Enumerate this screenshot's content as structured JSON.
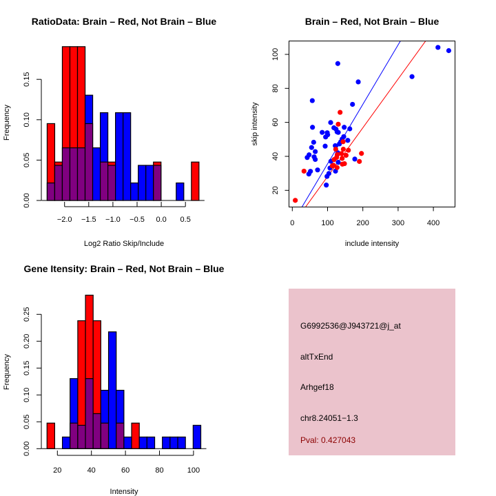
{
  "colors": {
    "brain": "#ff0000",
    "not_brain": "#0000ff",
    "overlap": "#800080",
    "info_box": "#ebc3cc",
    "pval_text": "#8b0000"
  },
  "chart_data": [
    {
      "id": "ratio-histogram",
      "type": "bar",
      "subtype": "overlaid-histogram",
      "title": "RatioData: Brain – Red, Not Brain – Blue",
      "xlabel": "Log2 Ratio Skip/Include",
      "ylabel": "Frequency",
      "xlim": [
        -2.45,
        0.85
      ],
      "ylim": [
        0,
        0.15
      ],
      "xticks": [
        -2.0,
        -1.5,
        -1.0,
        -0.5,
        0.0,
        0.5
      ],
      "xtick_labels": [
        "−2.0",
        "−1.5",
        "−1.0",
        "−0.5",
        "0.0",
        "0.5"
      ],
      "yticks": [
        0.0,
        0.05,
        0.1,
        0.15
      ],
      "ytick_labels": [
        "0.00",
        "0.05",
        "0.10",
        "0.15"
      ],
      "bin_start": -2.36,
      "bin_width": 0.157,
      "series": [
        {
          "name": "Brain",
          "color": "red",
          "values": [
            0.0952,
            0.0476,
            0.1905,
            0.1905,
            0.1905,
            0.0952,
            0,
            0.0476,
            0.0476,
            0,
            0,
            0,
            0,
            0,
            0.0476,
            0,
            0,
            0,
            0,
            0.0476
          ]
        },
        {
          "name": "Not Brain",
          "color": "blue",
          "values": [
            0.0217,
            0.0435,
            0.0652,
            0.0652,
            0.0652,
            0.1304,
            0.0652,
            0.1087,
            0.0435,
            0.1087,
            0.1087,
            0.0217,
            0.0435,
            0.0435,
            0.0435,
            0,
            0,
            0.0217,
            0,
            0
          ]
        }
      ],
      "legend": "none (colors described in title)"
    },
    {
      "id": "intensity-scatter",
      "type": "scatter",
      "title": "Brain – Red, Not Brain – Blue",
      "xlabel": "include intensity",
      "ylabel": "skip intensity",
      "xlim": [
        -10,
        460
      ],
      "ylim": [
        10,
        107
      ],
      "xticks": [
        0,
        100,
        200,
        300,
        400
      ],
      "xtick_labels": [
        "0",
        "100",
        "200",
        "300",
        "400"
      ],
      "yticks": [
        20,
        40,
        60,
        80,
        100
      ],
      "ytick_labels": [
        "20",
        "40",
        "60",
        "80",
        "100"
      ],
      "series": [
        {
          "name": "Not Brain",
          "color": "blue",
          "points": [
            [
              413,
              104.1
            ],
            [
              443.6,
              102.2
            ],
            [
              339.4,
              86.9
            ],
            [
              129,
              94.6
            ],
            [
              187,
              83.8
            ],
            [
              56.7,
              72.8
            ],
            [
              170.7,
              70.6
            ],
            [
              57.3,
              57.1
            ],
            [
              108.8,
              59.9
            ],
            [
              147.2,
              57.1
            ],
            [
              163,
              56.2
            ],
            [
              117.9,
              56.8
            ],
            [
              124,
              56
            ],
            [
              84.7,
              54.1
            ],
            [
              99,
              53.9
            ],
            [
              100.3,
              52.7
            ],
            [
              94.5,
              51.4
            ],
            [
              127,
              54.4
            ],
            [
              130.3,
              54.1
            ],
            [
              60.6,
              48.3
            ],
            [
              145.9,
              51.6
            ],
            [
              141.4,
              50.2
            ],
            [
              157.3,
              49.4
            ],
            [
              137.1,
              48.5
            ],
            [
              93.2,
              46
            ],
            [
              121.8,
              46.3
            ],
            [
              54.7,
              45.2
            ],
            [
              65.1,
              42.8
            ],
            [
              129,
              42.1
            ],
            [
              47.6,
              40.9
            ],
            [
              42.3,
              39.3
            ],
            [
              61.9,
              39.7
            ],
            [
              65.1,
              38.2
            ],
            [
              177.2,
              38.4
            ],
            [
              109.4,
              37.1
            ],
            [
              130.3,
              36.5
            ],
            [
              71.7,
              32
            ],
            [
              106.8,
              33.1
            ],
            [
              122.5,
              31.3
            ],
            [
              51.5,
              31.2
            ],
            [
              46.9,
              29.6
            ],
            [
              103.6,
              29.9
            ],
            [
              98.4,
              28.2
            ],
            [
              96.4,
              23.1
            ],
            [
              133.6,
              47.3
            ],
            [
              127.5,
              41
            ]
          ]
        },
        {
          "name": "Brain",
          "color": "red",
          "points": [
            [
              8.5,
              14.1
            ],
            [
              33.2,
              31.3
            ],
            [
              135.5,
              65.9
            ],
            [
              130.3,
              58.9
            ],
            [
              144,
              48.6
            ],
            [
              123.1,
              44.2
            ],
            [
              144.7,
              44.2
            ],
            [
              159,
              43.6
            ],
            [
              196.1,
              41.7
            ],
            [
              152.5,
              40.6
            ],
            [
              139.4,
              41.6
            ],
            [
              127.7,
              41.1
            ],
            [
              118.6,
              38.1
            ],
            [
              125.7,
              39.4
            ],
            [
              141.4,
              38.8
            ],
            [
              190.2,
              37
            ],
            [
              142,
              35.4
            ],
            [
              147.9,
              35.7
            ],
            [
              116.6,
              34.8
            ],
            [
              127,
              33.4
            ],
            [
              113.4,
              34.4
            ]
          ]
        }
      ],
      "fit_lines": [
        {
          "name": "Not Brain fit",
          "color": "blue",
          "slope": 0.35,
          "intercept": 0.6
        },
        {
          "name": "Brain fit",
          "color": "red",
          "slope": 0.287,
          "intercept": -0.6
        }
      ]
    },
    {
      "id": "gene-intensity-histogram",
      "type": "bar",
      "subtype": "overlaid-histogram",
      "title": "Gene Itensity: Brain – Red, Not Brain – Blue",
      "xlabel": "Intensity",
      "ylabel": "Frequency",
      "xlim": [
        10,
        108
      ],
      "ylim": [
        0,
        0.25
      ],
      "xticks": [
        20,
        40,
        60,
        80,
        100
      ],
      "xtick_labels": [
        "20",
        "40",
        "60",
        "80",
        "100"
      ],
      "yticks": [
        0.0,
        0.05,
        0.1,
        0.15,
        0.2,
        0.25
      ],
      "ytick_labels": [
        "0.00",
        "0.05",
        "0.10",
        "0.15",
        "0.20",
        "0.25"
      ],
      "bin_start": 13.9,
      "bin_width": 4.52,
      "series": [
        {
          "name": "Brain",
          "color": "red",
          "values": [
            0.0476,
            0,
            0,
            0.0476,
            0.2381,
            0.2857,
            0.2381,
            0.0476,
            0,
            0.0476,
            0,
            0.0476,
            0,
            0,
            0,
            0,
            0,
            0,
            0,
            0
          ]
        },
        {
          "name": "Not Brain",
          "color": "blue",
          "values": [
            0,
            0,
            0.0217,
            0.1304,
            0.0435,
            0.1304,
            0.0652,
            0.1087,
            0.2174,
            0.1087,
            0.0217,
            0,
            0.0217,
            0.0217,
            0,
            0.0217,
            0.0217,
            0.0217,
            0,
            0.0435
          ]
        }
      ],
      "legend": "none (colors described in title)"
    }
  ],
  "info_panel": {
    "probe_id": "G6992536@J943721@j_at",
    "event_type": "altTxEnd",
    "gene": "Arhgef18",
    "location": "chr8.24051−1.3",
    "pval": "Pval: 0.427043"
  }
}
